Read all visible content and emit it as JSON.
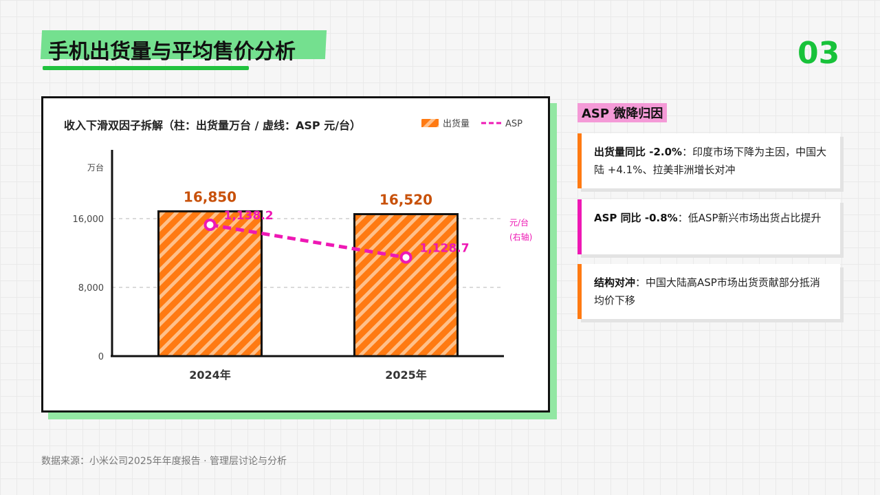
{
  "header": {
    "title": "手机出货量与平均售价分析",
    "page_number": "03"
  },
  "chart_data": {
    "type": "bar",
    "title": "收入下滑双因子拆解（柱：出货量万台 / 虚线：ASP 元/台）",
    "categories": [
      "2024年",
      "2025年"
    ],
    "series": [
      {
        "name": "出货量",
        "type": "bar",
        "axis": "left",
        "values": [
          16850,
          16520
        ],
        "labels": [
          "16,850",
          "16,520"
        ]
      },
      {
        "name": "ASP",
        "type": "line",
        "axis": "right",
        "values": [
          1138.2,
          1128.7
        ],
        "labels": [
          "1,138.2",
          "1,128.7"
        ]
      }
    ],
    "y_left": {
      "unit": "万台",
      "ticks": [
        "0",
        "8,000",
        "16,000"
      ],
      "tick_values": [
        0,
        8000,
        16000
      ],
      "range": [
        0,
        24000
      ]
    },
    "y_right": {
      "label_line1": "元/台",
      "label_line2": "(右轴)",
      "range": [
        1100,
        1160
      ]
    },
    "legend_position": "top-right",
    "gridlines": "dashed-horizontal"
  },
  "panel": {
    "title": "ASP 微降归因",
    "items": [
      {
        "bold": "出货量同比 -2.0%",
        "text": "：印度市场下降为主因，中国大陆 +4.1%、拉美非洲增长对冲"
      },
      {
        "bold": "ASP 同比 -0.8%",
        "text": "：低ASP新兴市场出货占比提升"
      },
      {
        "bold": "结构对冲",
        "text": "：中国大陆高ASP市场出货贡献部分抵消均价下移"
      }
    ]
  },
  "footer": "数据来源：小米公司2025年年度报告 · 管理层讨论与分析",
  "colors": {
    "accent_green": "#18c23a",
    "bar_orange": "#ff7a12",
    "bar_stripe": "#ffc08a",
    "line_pink": "#ee18b4",
    "value_label": "#c8510a",
    "title_highlight": "#74e08f",
    "panel_title_bg": "#f49ad7"
  }
}
